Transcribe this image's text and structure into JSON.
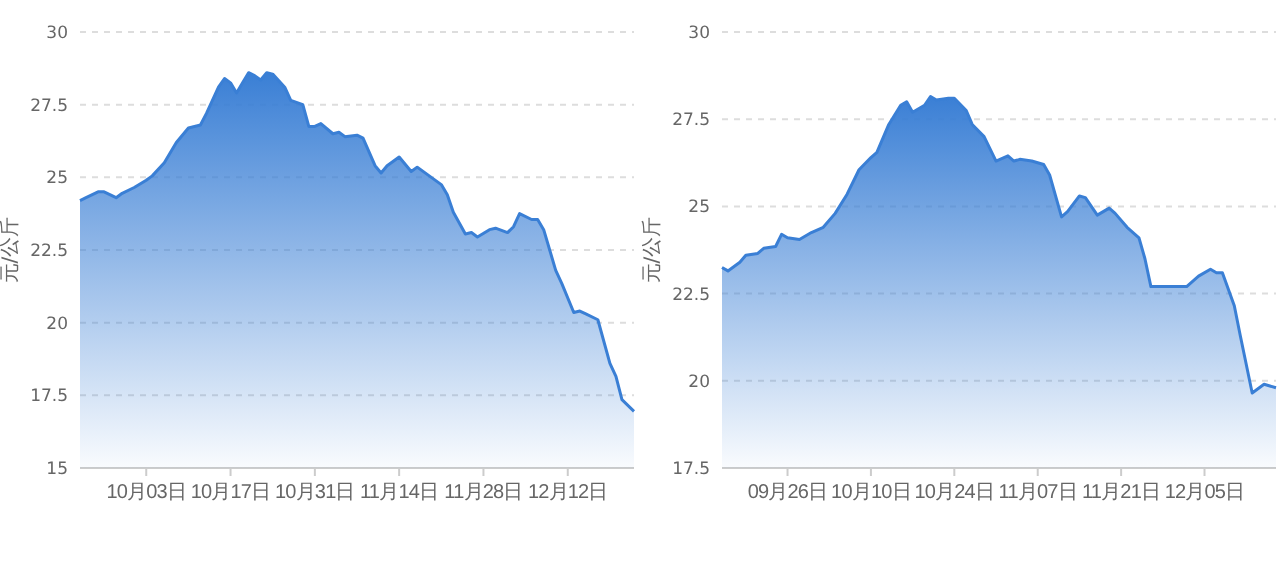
{
  "chart_data": [
    {
      "type": "area",
      "ylabel": "元/公斤",
      "grid": "y",
      "xlim": [
        "--09-22",
        "--12-23"
      ],
      "ylim": [
        15,
        30
      ],
      "yticks": [
        15,
        17.5,
        20,
        22.5,
        25,
        27.5,
        30
      ],
      "xticks": [
        {
          "value": "--10-03",
          "label": "10月03日"
        },
        {
          "value": "--10-17",
          "label": "10月17日"
        },
        {
          "value": "--10-31",
          "label": "10月31日"
        },
        {
          "value": "--11-14",
          "label": "11月14日"
        },
        {
          "value": "--11-28",
          "label": "11月28日"
        },
        {
          "value": "--12-12",
          "label": "12月12日"
        }
      ],
      "x": [
        "--09-22",
        "--09-23",
        "--09-25",
        "--09-26",
        "--09-28",
        "--09-29",
        "--10-01",
        "--10-03",
        "--10-04",
        "--10-06",
        "--10-08",
        "--10-10",
        "--10-12",
        "--10-13",
        "--10-15",
        "--10-16",
        "--10-17",
        "--10-18",
        "--10-19",
        "--10-20",
        "--10-21",
        "--10-22",
        "--10-23",
        "--10-24",
        "--10-26",
        "--10-27",
        "--10-29",
        "--10-30",
        "--10-31",
        "--11-01",
        "--11-03",
        "--11-04",
        "--11-05",
        "--11-07",
        "--11-08",
        "--11-10",
        "--11-11",
        "--11-12",
        "--11-14",
        "--11-16",
        "--11-17",
        "--11-19",
        "--11-21",
        "--11-22",
        "--11-23",
        "--11-25",
        "--11-26",
        "--11-27",
        "--11-29",
        "--11-30",
        "--12-02",
        "--12-03",
        "--12-04",
        "--12-06",
        "--12-07",
        "--12-08",
        "--12-10",
        "--12-11",
        "--12-13",
        "--12-14",
        "--12-15",
        "--12-17",
        "--12-19",
        "--12-20",
        "--12-21",
        "--12-23"
      ],
      "series": [
        {
          "color": "#3a7fd5",
          "values": [
            24.2,
            24.3,
            24.5,
            24.5,
            24.3,
            24.45,
            24.65,
            24.9,
            25.05,
            25.5,
            26.2,
            26.7,
            26.8,
            27.2,
            28.1,
            28.4,
            28.25,
            27.9,
            28.25,
            28.6,
            28.5,
            28.35,
            28.6,
            28.55,
            28.1,
            27.65,
            27.5,
            26.75,
            26.75,
            26.85,
            26.5,
            26.55,
            26.4,
            26.45,
            26.35,
            25.4,
            25.15,
            25.4,
            25.7,
            25.2,
            25.35,
            25.05,
            24.75,
            24.4,
            23.8,
            23.05,
            23.1,
            22.95,
            23.2,
            23.25,
            23.1,
            23.3,
            23.75,
            23.55,
            23.55,
            23.2,
            21.8,
            21.35,
            20.35,
            20.4,
            20.3,
            20.1,
            18.6,
            18.15,
            17.35,
            16.95
          ]
        }
      ]
    },
    {
      "type": "area",
      "ylabel": "元/公斤",
      "grid": "y",
      "xlim": [
        "--09-15",
        "--12-17"
      ],
      "ylim": [
        17.5,
        30
      ],
      "yticks": [
        17.5,
        20,
        22.5,
        25,
        27.5,
        30
      ],
      "xticks": [
        {
          "value": "--09-26",
          "label": "09月26日"
        },
        {
          "value": "--10-10",
          "label": "10月10日"
        },
        {
          "value": "--10-24",
          "label": "10月24日"
        },
        {
          "value": "--11-07",
          "label": "11月07日"
        },
        {
          "value": "--11-21",
          "label": "11月21日"
        },
        {
          "value": "--12-05",
          "label": "12月05日"
        }
      ],
      "x": [
        "--09-15",
        "--09-16",
        "--09-18",
        "--09-19",
        "--09-21",
        "--09-22",
        "--09-24",
        "--09-25",
        "--09-26",
        "--09-28",
        "--09-30",
        "--10-02",
        "--10-04",
        "--10-06",
        "--10-08",
        "--10-10",
        "--10-11",
        "--10-13",
        "--10-15",
        "--10-16",
        "--10-17",
        "--10-19",
        "--10-20",
        "--10-21",
        "--10-23",
        "--10-24",
        "--10-26",
        "--10-27",
        "--10-29",
        "--10-31",
        "--11-02",
        "--11-03",
        "--11-04",
        "--11-06",
        "--11-08",
        "--11-09",
        "--11-11",
        "--11-12",
        "--11-14",
        "--11-15",
        "--11-17",
        "--11-19",
        "--11-20",
        "--11-22",
        "--11-24",
        "--11-25",
        "--11-26",
        "--11-29",
        "--12-01",
        "--12-02",
        "--12-04",
        "--12-06",
        "--12-07",
        "--12-08",
        "--12-10",
        "--12-11",
        "--12-13",
        "--12-15",
        "--12-17"
      ],
      "series": [
        {
          "color": "#3a7fd5",
          "values": [
            23.25,
            23.15,
            23.4,
            23.6,
            23.65,
            23.8,
            23.85,
            24.2,
            24.1,
            24.05,
            24.25,
            24.4,
            24.8,
            25.35,
            26.05,
            26.4,
            26.55,
            27.35,
            27.9,
            28.0,
            27.7,
            27.9,
            28.15,
            28.05,
            28.1,
            28.1,
            27.75,
            27.35,
            27.0,
            26.3,
            26.45,
            26.3,
            26.35,
            26.3,
            26.2,
            25.9,
            24.7,
            24.85,
            25.3,
            25.25,
            24.75,
            24.95,
            24.8,
            24.4,
            24.1,
            23.5,
            22.7,
            22.7,
            22.7,
            22.7,
            23.0,
            23.2,
            23.1,
            23.1,
            22.15,
            21.3,
            19.65,
            19.9,
            19.8
          ]
        }
      ]
    }
  ]
}
